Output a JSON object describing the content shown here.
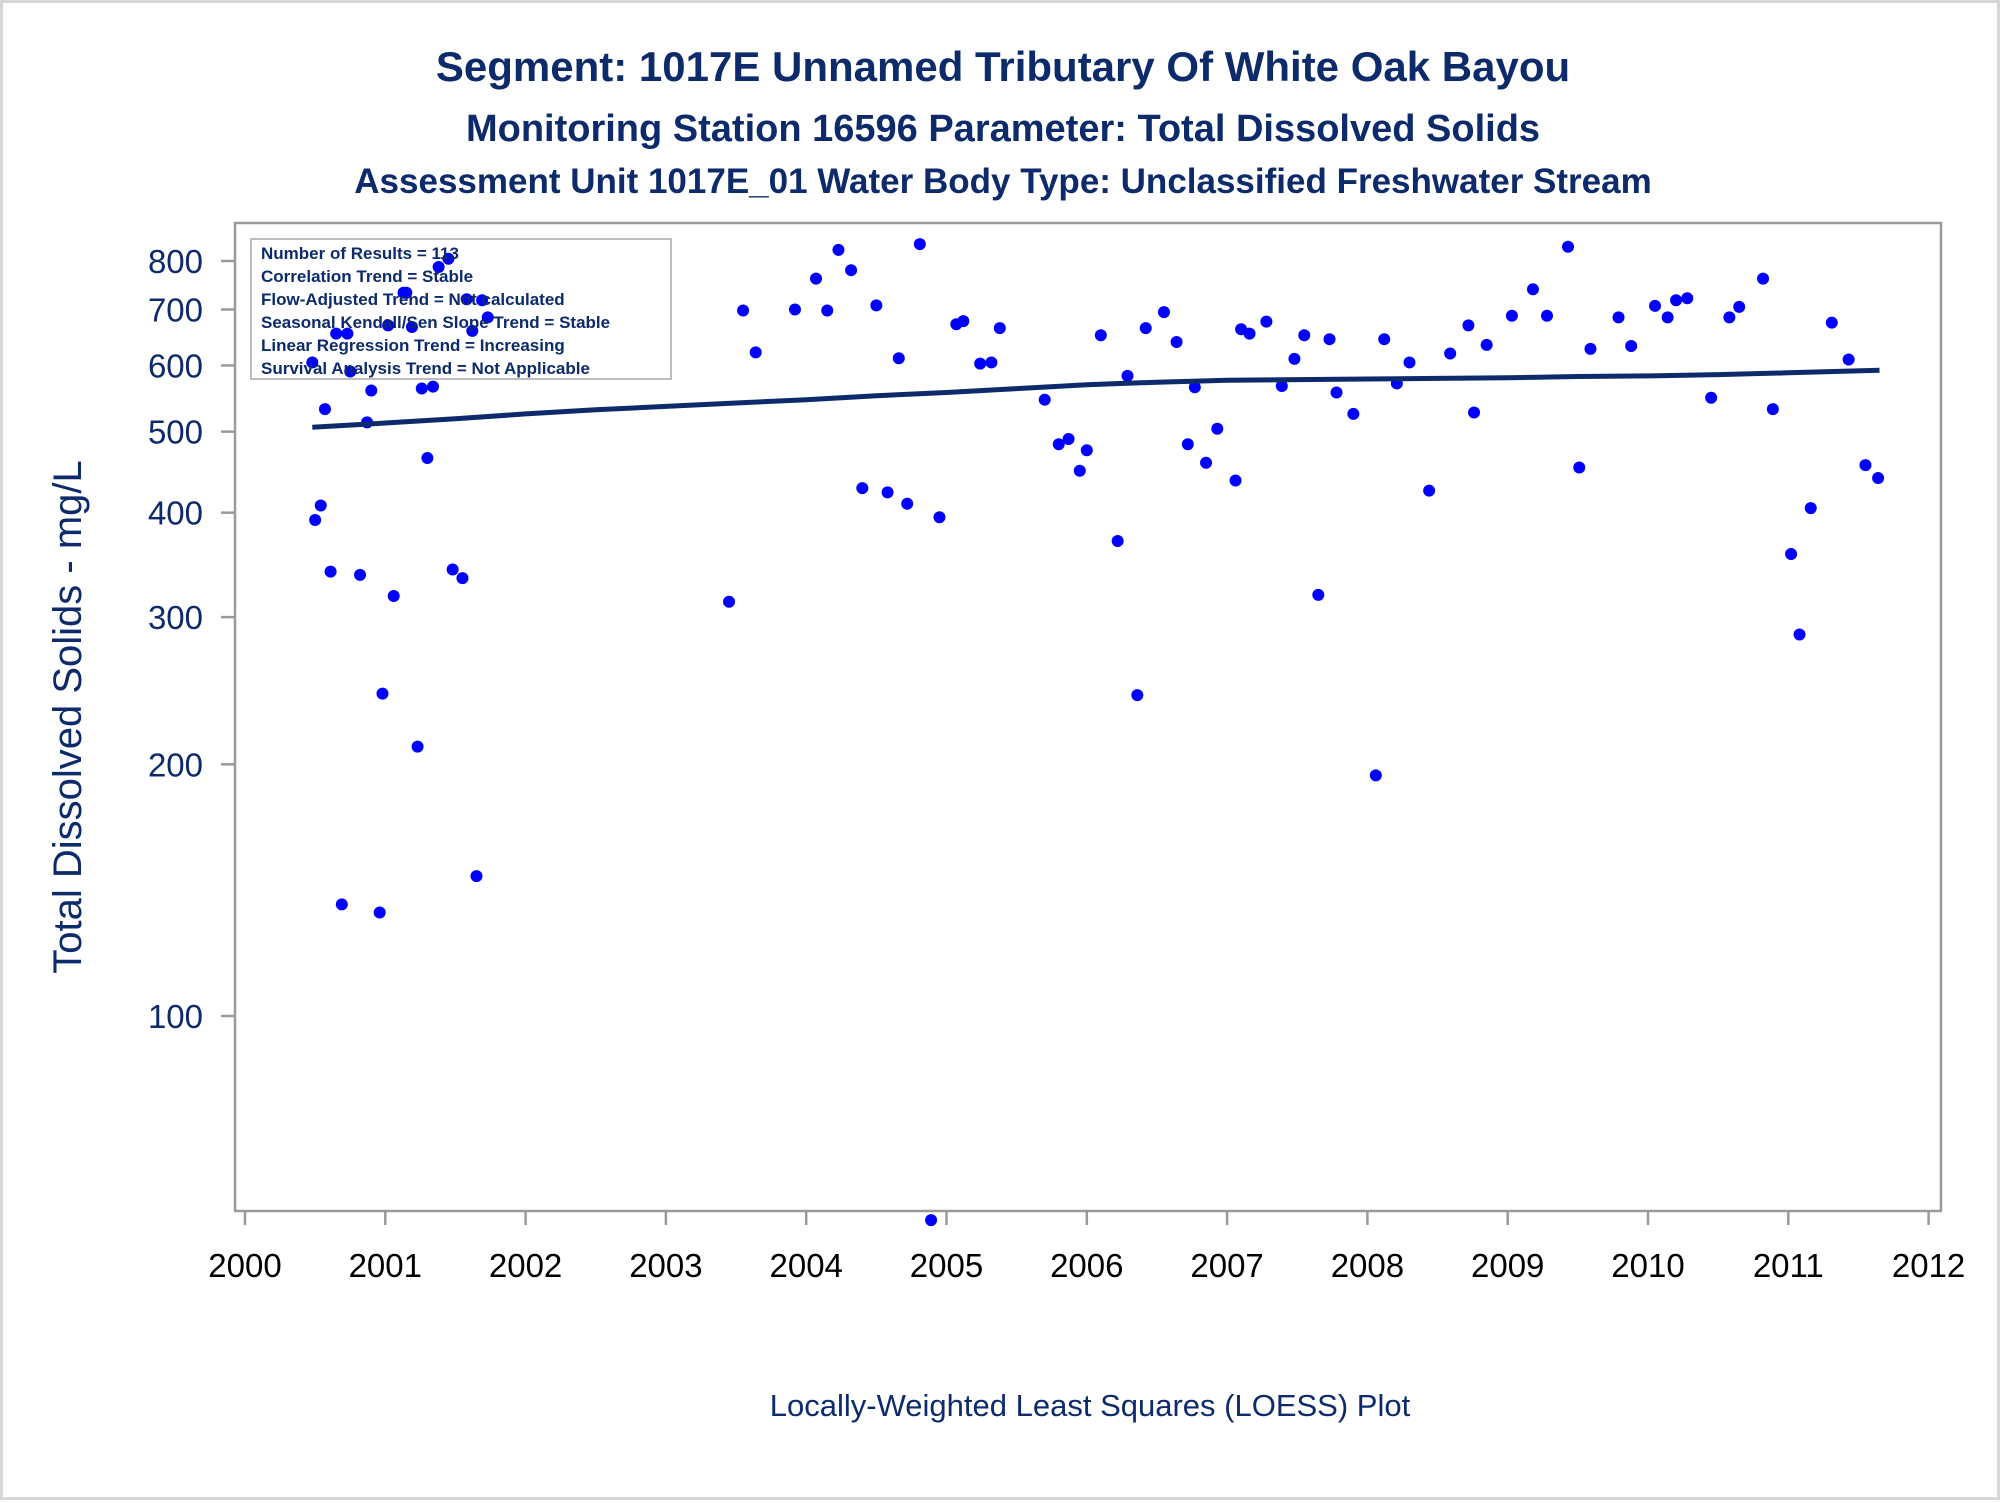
{
  "titles": {
    "line1": "Segment: 1017E  Unnamed Tributary Of White Oak Bayou",
    "line2": "Monitoring Station 16596 Parameter: Total Dissolved Solids",
    "line3": "Assessment Unit 1017E_01   Water Body Type: Unclassified Freshwater Stream"
  },
  "info_box": [
    "Number of Results = 113",
    "Correlation Trend = Stable",
    "Flow-Adjusted Trend = Not calculated",
    "Seasonal Kendall/Sen Slope Trend = Stable",
    "Linear Regression Trend = Increasing",
    "Survival Analysis Trend = Not Applicable"
  ],
  "footnote": "Locally-Weighted Least Squares (LOESS) Plot",
  "colors": {
    "points": "#0000ff",
    "line": "#0d2a6b",
    "text": "#0d2a6b",
    "axis": "#9a9a9a"
  },
  "chart_data": {
    "type": "scatter",
    "title": "Segment: 1017E  Unnamed Tributary Of White Oak Bayou",
    "ylabel": "Total Dissolved Solids - mg/L",
    "xlabel": "",
    "y_scale": "log",
    "ylim": [
      53,
      900
    ],
    "xlim": [
      2000.0,
      2012.2
    ],
    "yticks": [
      100,
      200,
      300,
      400,
      500,
      600,
      700,
      800
    ],
    "xticks": [
      2000,
      2001,
      2002,
      2003,
      2004,
      2005,
      2006,
      2007,
      2008,
      2009,
      2010,
      2011,
      2012
    ],
    "grid": false,
    "series": [
      {
        "name": "",
        "kind": "scatter",
        "points": [
          [
            2000.48,
            605
          ],
          [
            2000.5,
            392
          ],
          [
            2000.54,
            408
          ],
          [
            2000.57,
            532
          ],
          [
            2000.61,
            340
          ],
          [
            2000.65,
            655
          ],
          [
            2000.69,
            136
          ],
          [
            2000.73,
            655
          ],
          [
            2000.75,
            590
          ],
          [
            2000.82,
            337
          ],
          [
            2000.87,
            513
          ],
          [
            2000.9,
            560
          ],
          [
            2000.96,
            133
          ],
          [
            2000.98,
            243
          ],
          [
            2001.02,
            670
          ],
          [
            2001.06,
            318
          ],
          [
            2001.13,
            733
          ],
          [
            2001.15,
            733
          ],
          [
            2001.19,
            667
          ],
          [
            2001.23,
            210
          ],
          [
            2001.26,
            563
          ],
          [
            2001.3,
            465
          ],
          [
            2001.34,
            566
          ],
          [
            2001.38,
            787
          ],
          [
            2001.45,
            805
          ],
          [
            2001.48,
            342
          ],
          [
            2001.55,
            334
          ],
          [
            2001.58,
            720
          ],
          [
            2001.62,
            660
          ],
          [
            2001.65,
            147
          ],
          [
            2001.69,
            718
          ],
          [
            2001.73,
            685
          ],
          [
            2003.45,
            313
          ],
          [
            2003.55,
            698
          ],
          [
            2003.64,
            622
          ],
          [
            2003.92,
            700
          ],
          [
            2004.07,
            762
          ],
          [
            2004.15,
            698
          ],
          [
            2004.23,
            825
          ],
          [
            2004.32,
            780
          ],
          [
            2004.4,
            428
          ],
          [
            2004.5,
            708
          ],
          [
            2004.58,
            423
          ],
          [
            2004.66,
            612
          ],
          [
            2004.72,
            410
          ],
          [
            2004.81,
            838
          ],
          [
            2004.89,
            57
          ],
          [
            2004.95,
            395
          ],
          [
            2005.07,
            672
          ],
          [
            2005.12,
            678
          ],
          [
            2005.24,
            603
          ],
          [
            2005.32,
            605
          ],
          [
            2005.38,
            665
          ],
          [
            2005.7,
            546
          ],
          [
            2005.8,
            483
          ],
          [
            2005.87,
            490
          ],
          [
            2005.95,
            449
          ],
          [
            2006.0,
            475
          ],
          [
            2006.1,
            652
          ],
          [
            2006.22,
            370
          ],
          [
            2006.29,
            583
          ],
          [
            2006.36,
            242
          ],
          [
            2006.42,
            665
          ],
          [
            2006.55,
            695
          ],
          [
            2006.64,
            640
          ],
          [
            2006.72,
            483
          ],
          [
            2006.77,
            565
          ],
          [
            2006.85,
            459
          ],
          [
            2006.93,
            504
          ],
          [
            2007.06,
            437
          ],
          [
            2007.1,
            663
          ],
          [
            2007.16,
            655
          ],
          [
            2007.28,
            677
          ],
          [
            2007.39,
            567
          ],
          [
            2007.48,
            611
          ],
          [
            2007.55,
            652
          ],
          [
            2007.65,
            319
          ],
          [
            2007.73,
            645
          ],
          [
            2007.78,
            557
          ],
          [
            2007.9,
            525
          ],
          [
            2008.06,
            194
          ],
          [
            2008.12,
            645
          ],
          [
            2008.21,
            571
          ],
          [
            2008.3,
            605
          ],
          [
            2008.44,
            425
          ],
          [
            2008.59,
            620
          ],
          [
            2008.72,
            670
          ],
          [
            2008.76,
            527
          ],
          [
            2008.85,
            635
          ],
          [
            2009.03,
            688
          ],
          [
            2009.18,
            740
          ],
          [
            2009.28,
            688
          ],
          [
            2009.43,
            832
          ],
          [
            2009.51,
            453
          ],
          [
            2009.59,
            628
          ],
          [
            2009.79,
            685
          ],
          [
            2009.88,
            633
          ],
          [
            2010.05,
            707
          ],
          [
            2010.14,
            685
          ],
          [
            2010.2,
            718
          ],
          [
            2010.28,
            722
          ],
          [
            2010.45,
            549
          ],
          [
            2010.58,
            685
          ],
          [
            2010.65,
            705
          ],
          [
            2010.82,
            762
          ],
          [
            2010.89,
            532
          ],
          [
            2011.02,
            357
          ],
          [
            2011.08,
            286
          ],
          [
            2011.16,
            405
          ],
          [
            2011.31,
            675
          ],
          [
            2011.43,
            610
          ],
          [
            2011.55,
            456
          ],
          [
            2011.64,
            440
          ]
        ]
      },
      {
        "name": "",
        "kind": "line",
        "points": [
          [
            2000.48,
            506
          ],
          [
            2001.0,
            512
          ],
          [
            2001.5,
            518
          ],
          [
            2002.0,
            525
          ],
          [
            2002.5,
            531
          ],
          [
            2003.0,
            536
          ],
          [
            2003.5,
            541
          ],
          [
            2004.0,
            546
          ],
          [
            2004.5,
            552
          ],
          [
            2005.0,
            557
          ],
          [
            2005.5,
            563
          ],
          [
            2006.0,
            569
          ],
          [
            2006.5,
            573
          ],
          [
            2007.0,
            576
          ],
          [
            2007.5,
            577
          ],
          [
            2008.0,
            578
          ],
          [
            2008.5,
            579
          ],
          [
            2009.0,
            580
          ],
          [
            2009.5,
            582
          ],
          [
            2010.0,
            583
          ],
          [
            2010.5,
            585
          ],
          [
            2011.0,
            588
          ],
          [
            2011.65,
            592
          ]
        ]
      }
    ]
  }
}
